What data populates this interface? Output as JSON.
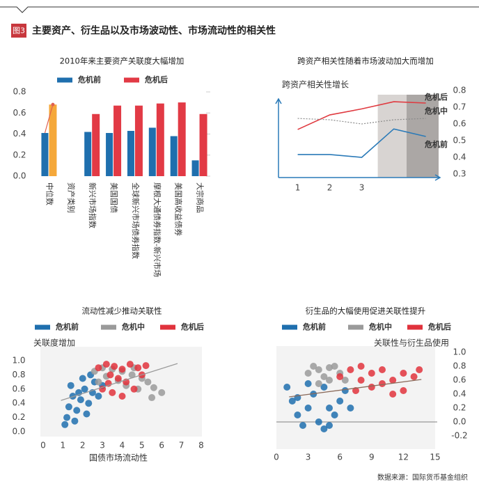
{
  "header": {
    "badge": "图3",
    "title": "主要资产、衍生品以及市场波动性、市场流动性的相关性"
  },
  "source": "数据来源：国际货币基金组织",
  "chart_data": [
    {
      "type": "bar",
      "title": "2010年来主要资产关联度大幅增加",
      "categories": [
        "中位数",
        "资产类别",
        "新兴市场指数",
        "美国国债",
        "全球新兴市场债券指数",
        "摩根大通债券指数-新兴市场",
        "美国高收益债券",
        "大宗商品"
      ],
      "series": [
        {
          "name": "危机前",
          "color": "#1f6fae",
          "values": [
            0.41,
            null,
            0.42,
            0.41,
            0.43,
            0.46,
            0.38,
            0.15
          ]
        },
        {
          "name": "危机后",
          "color": "#e23a45",
          "values": [
            0.68,
            null,
            0.59,
            0.67,
            0.67,
            0.69,
            0.7,
            0.59
          ]
        }
      ],
      "median_color": "#f5a83a",
      "ylim": [
        0,
        0.8
      ],
      "yticks": [
        0.8,
        0.6,
        0.4,
        0.2,
        {
          "value": 0,
          "label": "0.0"
        }
      ]
    },
    {
      "type": "line",
      "title": "跨资产相关性随着市场波动加大而增加",
      "y_label": "跨资产相关性增长",
      "x": [
        1,
        2,
        3,
        4,
        5
      ],
      "series": [
        {
          "name": "危机后",
          "color": "#e03a40",
          "values": [
            0.567,
            0.654,
            0.69,
            0.733,
            0.725
          ]
        },
        {
          "name": "危机中",
          "color": "#8a8a8a",
          "line_style": "dotted",
          "values": [
            0.633,
            0.625,
            0.6,
            0.625,
            0.633
          ]
        },
        {
          "name": "危机前",
          "color": "#2a7ab8",
          "values": [
            0.417,
            0.417,
            0.4,
            0.57,
            0.525
          ]
        }
      ],
      "shaded_spans": [
        {
          "from": 3.5,
          "to": 4.4,
          "color": "#d8d4d2"
        },
        {
          "from": 4.4,
          "to": 5.4,
          "color": "#aba7a5"
        }
      ],
      "xlim": [
        0.4,
        5.4
      ],
      "xticks": [
        1,
        2,
        3
      ],
      "ylim": [
        0.3,
        0.8
      ],
      "yticks": [
        0.8,
        0.7,
        0.6,
        0.5,
        0.4,
        0.3
      ]
    },
    {
      "type": "scatter",
      "title": "流动性减少推动关联性",
      "y_label": "关联度增加",
      "x_label": "国债市场流动性",
      "series": [
        {
          "name": "危机前",
          "color": "#1f6fae",
          "x": [
            1.2,
            1.3,
            1.5,
            1.4,
            1.7,
            1.9,
            2.1,
            2.0,
            2.3,
            2.5,
            2.6,
            2.8,
            1.1,
            1.6,
            2.2,
            3.0,
            2.4,
            1.8
          ],
          "y": [
            0.2,
            0.35,
            0.5,
            0.65,
            0.3,
            0.45,
            0.6,
            0.75,
            0.4,
            0.55,
            0.7,
            0.5,
            0.1,
            0.15,
            0.25,
            0.65,
            0.8,
            0.55
          ]
        },
        {
          "name": "危机中",
          "color": "#9a9a9a",
          "x": [
            2.6,
            3.0,
            3.5,
            4.0,
            4.5,
            5.0,
            5.3,
            5.6,
            6.0,
            4.8,
            4.2,
            3.8,
            3.2,
            5.5,
            2.8,
            4.6
          ],
          "y": [
            0.85,
            0.9,
            0.88,
            0.85,
            0.8,
            0.75,
            0.7,
            0.62,
            0.55,
            0.6,
            0.65,
            0.72,
            0.78,
            0.48,
            0.7,
            0.9
          ]
        },
        {
          "name": "危机后",
          "color": "#e0323c",
          "x": [
            2.8,
            3.2,
            3.6,
            4.0,
            4.4,
            4.8,
            5.2,
            3.4,
            3.8,
            4.2,
            3.0,
            3.5,
            4.0,
            4.6,
            5.0,
            3.3
          ],
          "y": [
            0.9,
            0.95,
            0.92,
            0.88,
            0.95,
            0.9,
            0.93,
            0.8,
            0.75,
            0.7,
            0.6,
            0.55,
            0.5,
            0.6,
            0.8,
            0.68
          ]
        }
      ],
      "trend": {
        "color": "#999999",
        "x": [
          0.9,
          6.8
        ],
        "y": [
          0.44,
          0.96
        ]
      },
      "xlim": [
        0,
        8
      ],
      "xticks": [
        0,
        1,
        2,
        3,
        4,
        5,
        6,
        7,
        8
      ],
      "ylim": [
        0,
        1
      ],
      "yticks": [
        {
          "value": 1,
          "label": "1.0"
        },
        0.8,
        0.6,
        0.4,
        0.2,
        {
          "value": 0,
          "label": "0.0"
        }
      ]
    },
    {
      "type": "scatter",
      "title": "衍生品的大幅使用促进关联性提升",
      "y_label": "关联性与衍生品使用",
      "series": [
        {
          "name": "危机前",
          "color": "#1f6fae",
          "x": [
            1,
            1.5,
            2,
            2.5,
            3,
            3.5,
            4,
            4.5,
            5,
            5.5,
            6,
            6.5,
            7,
            3,
            2,
            4.5,
            5
          ],
          "y": [
            0.5,
            0.3,
            0.1,
            -0.05,
            0.2,
            0.4,
            0.0,
            -0.1,
            0.2,
            0.1,
            0.3,
            0.45,
            0.2,
            0.55,
            0.35,
            0.5,
            -0.05
          ]
        },
        {
          "name": "危机中",
          "color": "#9a9a9a",
          "x": [
            3,
            3.5,
            4,
            4.5,
            5,
            5.5,
            6,
            6.5,
            4,
            5
          ],
          "y": [
            0.7,
            0.8,
            0.75,
            0.65,
            0.6,
            0.8,
            0.7,
            0.6,
            0.55,
            0.78
          ]
        },
        {
          "name": "危机后",
          "color": "#e0323c",
          "x": [
            6,
            7,
            8,
            9,
            10,
            11,
            12,
            13,
            12,
            11,
            10,
            9,
            8,
            7.5,
            13.5
          ],
          "y": [
            0.65,
            0.75,
            0.8,
            0.7,
            0.75,
            0.6,
            0.7,
            0.65,
            0.45,
            0.4,
            0.55,
            0.5,
            0.6,
            0.45,
            0.75
          ]
        }
      ],
      "trend": {
        "color": "#8a6a5a",
        "x": [
          1.2,
          13.7
        ],
        "y": [
          0.36,
          0.61
        ]
      },
      "zero_line": true,
      "xlim": [
        0,
        15
      ],
      "xticks": [
        0,
        3,
        6,
        9,
        12,
        15
      ],
      "ylim": [
        -0.2,
        1
      ],
      "yticks": [
        {
          "value": 1,
          "label": "1.0"
        },
        0.8,
        0.6,
        0.4,
        0.2,
        {
          "value": 0,
          "label": "0.0"
        },
        -0.2
      ]
    }
  ]
}
